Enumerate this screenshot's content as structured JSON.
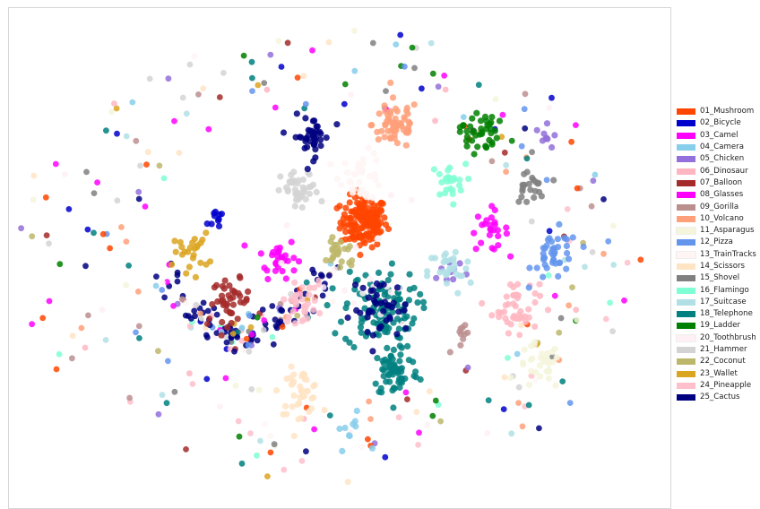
{
  "chart_data": {
    "type": "scatter",
    "title": "",
    "xlabel": "",
    "ylabel": "",
    "axes_visible": false,
    "grid": false,
    "legend_position": "right",
    "x_range": [
      0,
      100
    ],
    "y_range": [
      0,
      100
    ],
    "series": [
      {
        "name": "01_Mushroom",
        "color": "#ff4500",
        "clusters": [
          {
            "x": 53.5,
            "y": 56.8,
            "spread": 3.2,
            "n": 150
          }
        ]
      },
      {
        "name": "02_Bicycle",
        "color": "#0000cd",
        "clusters": [
          {
            "x": 31.8,
            "y": 57.5,
            "spread": 1.6,
            "n": 10
          }
        ]
      },
      {
        "name": "03_Camel",
        "color": "#ff00ff",
        "clusters": [
          {
            "x": 40.5,
            "y": 49.6,
            "spread": 2.6,
            "n": 28
          }
        ]
      },
      {
        "name": "04_Camera",
        "color": "#87ceeb",
        "clusters": [
          {
            "x": 51.5,
            "y": 14.5,
            "spread": 2.2,
            "n": 10
          }
        ]
      },
      {
        "name": "05_Chicken",
        "color": "#9370db",
        "clusters": [
          {
            "x": 81.2,
            "y": 73.8,
            "spread": 1.6,
            "n": 9
          },
          {
            "x": 66.5,
            "y": 47,
            "spread": 2.5,
            "n": 10
          }
        ]
      },
      {
        "name": "06_Dinosaur",
        "color": "#ffb6c1",
        "clusters": [
          {
            "x": 76.4,
            "y": 39.7,
            "spread": 3.2,
            "n": 40
          }
        ]
      },
      {
        "name": "07_Balloon",
        "color": "#a52a2a",
        "clusters": [
          {
            "x": 33.5,
            "y": 40.9,
            "spread": 2.6,
            "n": 40
          }
        ]
      },
      {
        "name": "08_Glasses",
        "color": "#ff00ff",
        "clusters": [
          {
            "x": 72.4,
            "y": 55.1,
            "spread": 2.6,
            "n": 25
          }
        ]
      },
      {
        "name": "09_Gorilla",
        "color": "#bc8f8f",
        "clusters": [
          {
            "x": 68.5,
            "y": 33.1,
            "spread": 1.8,
            "n": 10
          }
        ]
      },
      {
        "name": "10_Volcano",
        "color": "#ffa07a",
        "clusters": [
          {
            "x": 58.3,
            "y": 76.5,
            "spread": 3.2,
            "n": 60
          }
        ]
      },
      {
        "name": "11_Asparagus",
        "color": "#f5f5dc",
        "clusters": [
          {
            "x": 80,
            "y": 27.4,
            "spread": 3,
            "n": 30
          }
        ]
      },
      {
        "name": "12_Pizza",
        "color": "#6495ed",
        "clusters": [
          {
            "x": 82.4,
            "y": 50,
            "spread": 3.2,
            "n": 40
          }
        ]
      },
      {
        "name": "13_TrainTracks",
        "color": "#fff5f5",
        "clusters": [
          {
            "x": 53.2,
            "y": 66,
            "spread": 3,
            "n": 35
          }
        ]
      },
      {
        "name": "14_Scissors",
        "color": "#ffe4c4",
        "clusters": [
          {
            "x": 43.9,
            "y": 22.5,
            "spread": 2.8,
            "n": 40
          }
        ]
      },
      {
        "name": "15_Shovel",
        "color": "#808080",
        "clusters": [
          {
            "x": 78.3,
            "y": 63.8,
            "spread": 2.2,
            "n": 22
          }
        ]
      },
      {
        "name": "16_Flamingo",
        "color": "#7fffd4",
        "clusters": [
          {
            "x": 66.2,
            "y": 64.6,
            "spread": 2.4,
            "n": 25
          }
        ]
      },
      {
        "name": "17_Suitcase",
        "color": "#b0e0e6",
        "clusters": [
          {
            "x": 66.5,
            "y": 46.7,
            "spread": 3,
            "n": 30
          }
        ]
      },
      {
        "name": "18_Telephone",
        "color": "#008080",
        "clusters": [
          {
            "x": 58.3,
            "y": 26.5,
            "spread": 3.2,
            "n": 60
          },
          {
            "x": 56,
            "y": 39,
            "spread": 5,
            "n": 120
          }
        ]
      },
      {
        "name": "19_Ladder",
        "color": "#008000",
        "clusters": [
          {
            "x": 70.8,
            "y": 75.1,
            "spread": 2.6,
            "n": 40
          }
        ]
      },
      {
        "name": "20_Toothbrush",
        "color": "#fff0f5",
        "clusters": [
          {
            "x": 53,
            "y": 45,
            "spread": 10,
            "n": 20
          }
        ]
      },
      {
        "name": "21_Hammer",
        "color": "#d3d3d3",
        "clusters": [
          {
            "x": 43.9,
            "y": 62.9,
            "spread": 2.6,
            "n": 40
          }
        ]
      },
      {
        "name": "22_Coconut",
        "color": "#bdb76b",
        "clusters": [
          {
            "x": 49.9,
            "y": 50.7,
            "spread": 2.4,
            "n": 25
          }
        ]
      },
      {
        "name": "23_Wallet",
        "color": "#daa520",
        "clusters": [
          {
            "x": 27.5,
            "y": 50.6,
            "spread": 2.4,
            "n": 25
          }
        ]
      },
      {
        "name": "24_Pineapple",
        "color": "#ffc0cb",
        "clusters": [
          {
            "x": 44,
            "y": 40.3,
            "spread": 2.4,
            "n": 30
          }
        ]
      },
      {
        "name": "25_Cactus",
        "color": "#000080",
        "clusters": [
          {
            "x": 45.7,
            "y": 74,
            "spread": 2.6,
            "n": 40
          },
          {
            "x": 56,
            "y": 39,
            "spread": 4,
            "n": 40
          }
        ]
      }
    ]
  }
}
